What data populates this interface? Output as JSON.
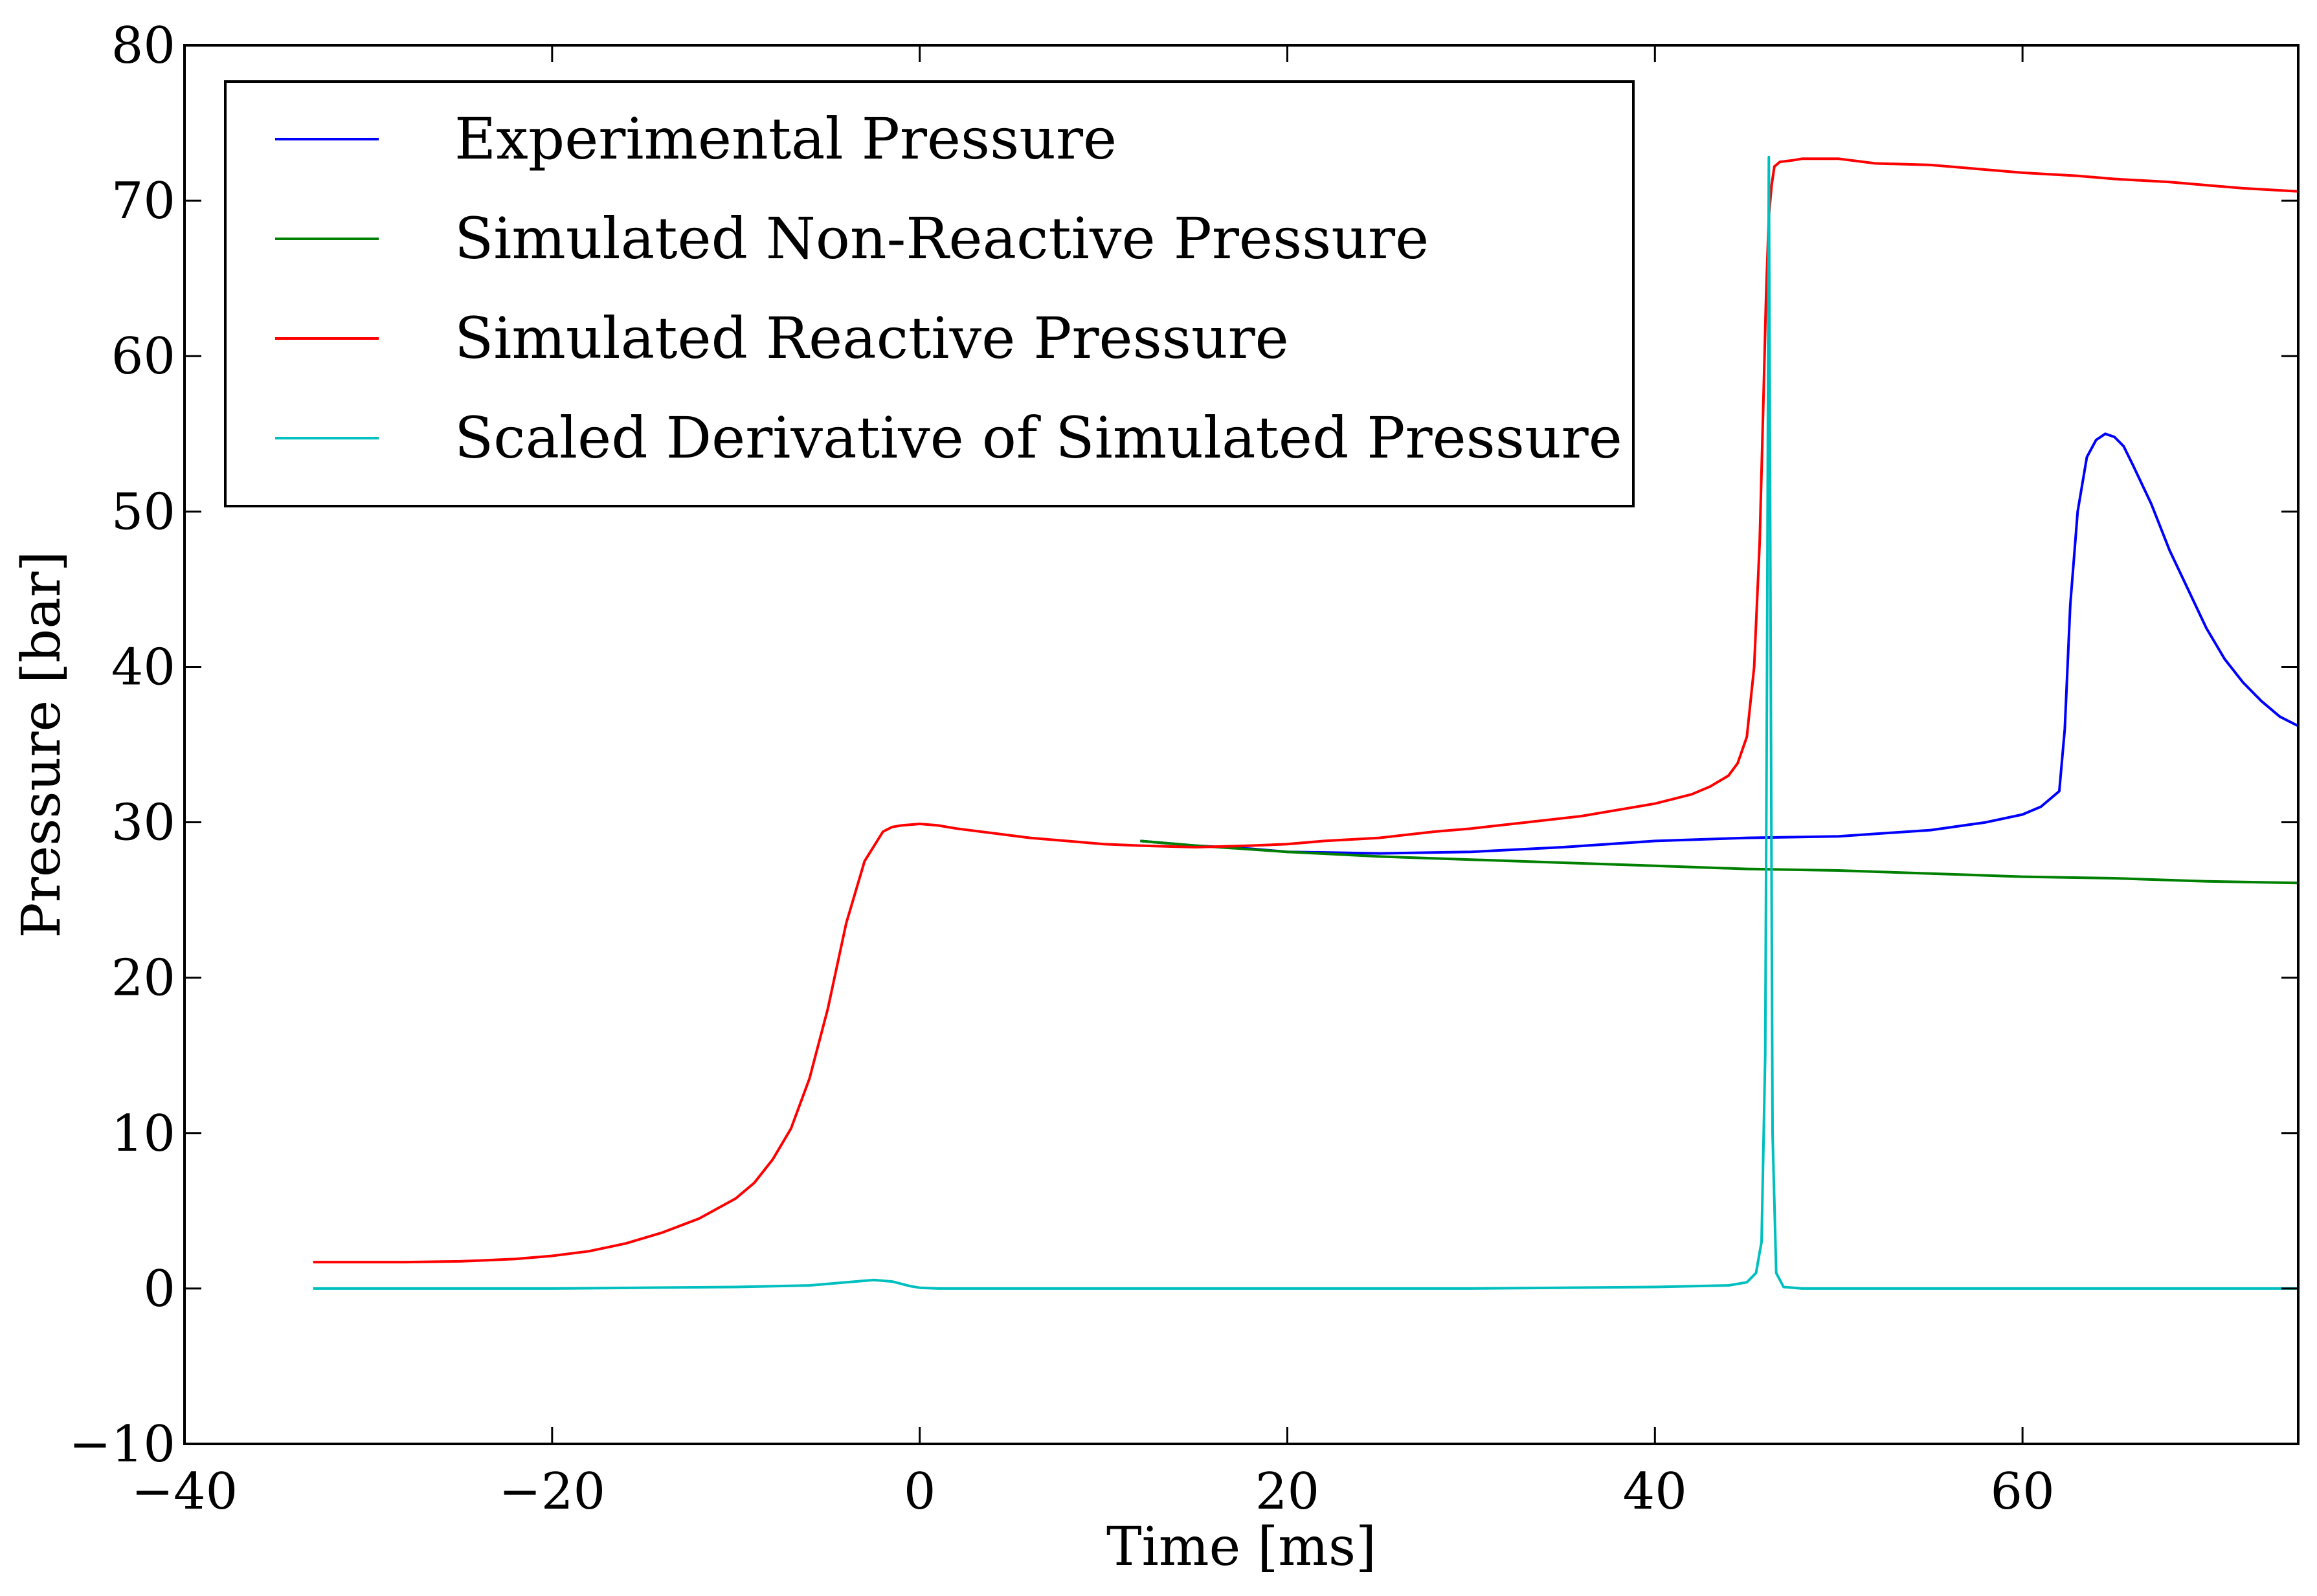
{
  "chart_data": {
    "type": "line",
    "title": "",
    "xlabel": "Time [ms]",
    "ylabel": "Pressure [bar]",
    "xlim": [
      -40,
      75
    ],
    "ylim": [
      -10,
      80
    ],
    "xticks": [
      -40,
      -20,
      0,
      20,
      40,
      60
    ],
    "yticks": [
      -10,
      0,
      10,
      20,
      30,
      40,
      50,
      60,
      70,
      80
    ],
    "xtick_labels": [
      "−40",
      "−20",
      "0",
      "20",
      "40",
      "60"
    ],
    "ytick_labels": [
      "−10",
      "0",
      "10",
      "20",
      "30",
      "40",
      "50",
      "60",
      "70",
      "80"
    ],
    "grid": false,
    "legend_position": "top-left",
    "series": [
      {
        "name": "Experimental Pressure",
        "color": "#0000ff",
        "x": [
          12,
          15,
          18,
          20,
          25,
          30,
          35,
          40,
          45,
          50,
          55,
          58,
          60,
          61,
          62,
          62.3,
          62.6,
          63,
          63.5,
          64,
          64.5,
          65,
          65.5,
          66,
          67,
          68,
          69,
          70,
          71,
          72,
          73,
          74,
          75
        ],
        "y": [
          28.8,
          28.5,
          28.3,
          28.1,
          28.0,
          28.1,
          28.4,
          28.8,
          29.0,
          29.1,
          29.5,
          30.0,
          30.5,
          31.0,
          32.0,
          36.0,
          44.0,
          50.0,
          53.5,
          54.6,
          55.0,
          54.8,
          54.2,
          53.0,
          50.5,
          47.5,
          45.0,
          42.5,
          40.5,
          39.0,
          37.8,
          36.8,
          36.2
        ]
      },
      {
        "name": "Simulated Non-Reactive Pressure",
        "color": "#008000",
        "x": [
          12,
          15,
          20,
          25,
          30,
          35,
          40,
          45,
          50,
          55,
          60,
          65,
          70,
          75
        ],
        "y": [
          28.8,
          28.5,
          28.1,
          27.8,
          27.6,
          27.4,
          27.2,
          27.0,
          26.9,
          26.7,
          26.5,
          26.4,
          26.2,
          26.1
        ]
      },
      {
        "name": "Simulated Reactive Pressure",
        "color": "#ff0000",
        "x": [
          -33,
          -30,
          -28,
          -25,
          -22,
          -20,
          -18,
          -16,
          -14,
          -12,
          -10,
          -9,
          -8,
          -7,
          -6,
          -5,
          -4,
          -3,
          -2,
          -1.5,
          -1,
          0,
          1,
          2,
          4,
          6,
          8,
          10,
          12,
          15,
          18,
          20,
          22,
          25,
          28,
          30,
          33,
          36,
          38,
          40,
          42,
          43,
          44,
          44.5,
          45,
          45.4,
          45.7,
          45.9,
          46.05,
          46.2,
          46.35,
          46.5,
          46.8,
          47.5,
          48,
          50,
          52,
          55,
          58,
          60,
          63,
          65,
          68,
          70,
          72,
          75
        ],
        "y": [
          1.7,
          1.7,
          1.7,
          1.75,
          1.9,
          2.1,
          2.4,
          2.9,
          3.6,
          4.5,
          5.8,
          6.8,
          8.3,
          10.3,
          13.5,
          18.0,
          23.5,
          27.5,
          29.4,
          29.7,
          29.8,
          29.9,
          29.8,
          29.6,
          29.3,
          29.0,
          28.8,
          28.6,
          28.5,
          28.4,
          28.5,
          28.6,
          28.8,
          29.0,
          29.4,
          29.6,
          30.0,
          30.4,
          30.8,
          31.2,
          31.8,
          32.3,
          33.0,
          33.8,
          35.5,
          40.0,
          48.0,
          57.0,
          64.0,
          69.0,
          71.0,
          72.2,
          72.5,
          72.6,
          72.7,
          72.7,
          72.4,
          72.3,
          72.0,
          71.8,
          71.6,
          71.4,
          71.2,
          71.0,
          70.8,
          70.6
        ]
      },
      {
        "name": "Scaled Derivative of Simulated Pressure",
        "color": "#00bfbf",
        "x": [
          -33,
          -20,
          -10,
          -6,
          -5,
          -4,
          -3.5,
          -3,
          -2.5,
          -2,
          -1.5,
          -1,
          -0.5,
          0,
          1,
          5,
          10,
          20,
          30,
          40,
          44,
          45,
          45.5,
          45.8,
          46.0,
          46.1,
          46.2,
          46.3,
          46.4,
          46.6,
          47,
          48,
          50,
          55,
          60,
          65,
          70,
          75
        ],
        "y": [
          0,
          0,
          0.1,
          0.2,
          0.3,
          0.4,
          0.45,
          0.5,
          0.55,
          0.5,
          0.45,
          0.3,
          0.15,
          0.05,
          0,
          0,
          0,
          0,
          0,
          0.1,
          0.2,
          0.4,
          1.0,
          3.0,
          15.0,
          40.0,
          72.8,
          40.0,
          10.0,
          1.0,
          0.1,
          0,
          0,
          0,
          0,
          0,
          0,
          0
        ]
      }
    ]
  }
}
